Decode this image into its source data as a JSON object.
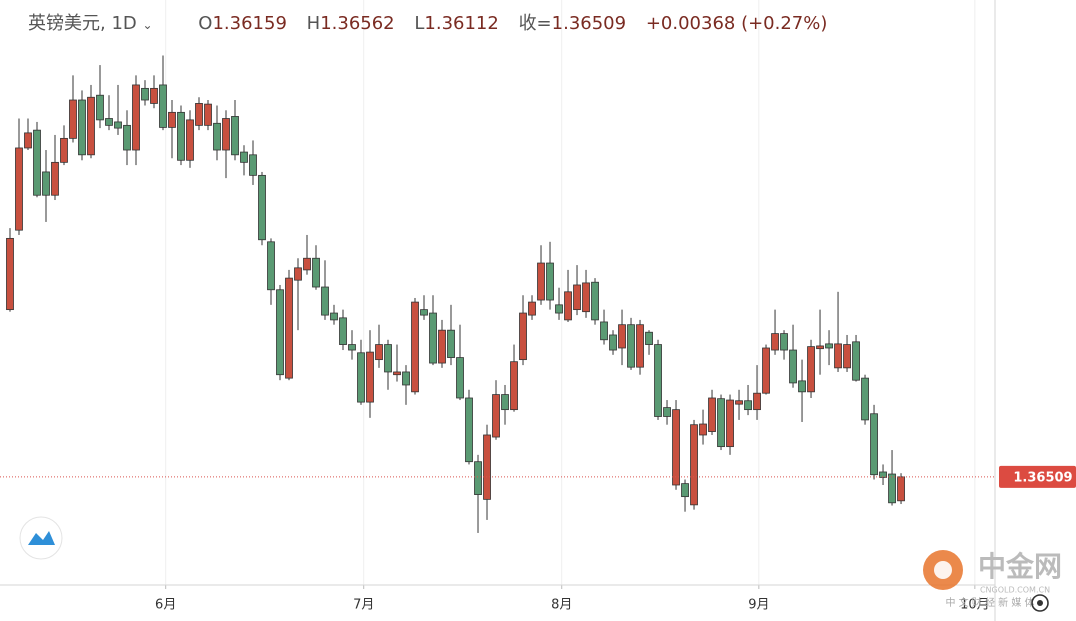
{
  "chart_data": {
    "type": "candlestick",
    "title": "英镑美元, 1D",
    "ohlc_labels": [
      "O",
      "H",
      "L",
      "收="
    ],
    "change": "+0.00368 (+0.27%)",
    "open": [
      1.3895,
      1.4011,
      1.4131,
      1.4157,
      1.4096,
      1.4062,
      1.411,
      1.4145,
      1.4201,
      1.4121,
      1.4208,
      1.4174,
      1.4169,
      1.4164,
      1.4128,
      1.4218,
      1.4196,
      1.4223,
      1.4161,
      1.4183,
      1.4113,
      1.4164,
      1.4164,
      1.4167,
      1.4128,
      1.4177,
      1.4125,
      1.4121,
      1.4091,
      1.3994,
      1.3924,
      1.3795,
      1.3938,
      1.3953,
      1.397,
      1.3928,
      1.389,
      1.3883,
      1.3844,
      1.3832,
      1.376,
      1.3822,
      1.3844,
      1.38,
      1.3804,
      1.3775,
      1.3895,
      1.389,
      1.3817,
      1.3865,
      1.3825,
      1.3766,
      1.3673,
      1.3618,
      1.3709,
      1.3771,
      1.3749,
      1.3822,
      1.3887,
      1.3909,
      1.3963,
      1.3902,
      1.388,
      1.3895,
      1.3892,
      1.3935,
      1.3877,
      1.3858,
      1.3839,
      1.3873,
      1.3811,
      1.3862,
      1.3844,
      1.3752,
      1.3639,
      1.3641,
      1.361,
      1.3712,
      1.3717,
      1.3765,
      1.3695,
      1.3757,
      1.3762,
      1.3749,
      1.3773,
      1.3836,
      1.386,
      1.3836,
      1.3791,
      1.3775,
      1.3838,
      1.3845,
      1.381,
      1.381,
      1.3848,
      1.3795,
      1.3743,
      1.3658,
      1.3655,
      1.36159
    ],
    "high": [
      1.4014,
      1.4174,
      1.4174,
      1.4169,
      1.4128,
      1.415,
      1.4164,
      1.4237,
      1.4215,
      1.4223,
      1.4252,
      1.4208,
      1.4223,
      1.4186,
      1.4237,
      1.423,
      1.4237,
      1.4266,
      1.4201,
      1.4193,
      1.4186,
      1.4205,
      1.4201,
      1.4193,
      1.4186,
      1.4201,
      1.4135,
      1.4142,
      1.4096,
      1.3999,
      1.3931,
      1.3953,
      1.397,
      1.4004,
      1.3989,
      1.3967,
      1.3902,
      1.3895,
      1.3865,
      1.3851,
      1.3865,
      1.3873,
      1.3851,
      1.3844,
      1.3814,
      1.3912,
      1.3916,
      1.3916,
      1.388,
      1.3902,
      1.3873,
      1.3778,
      1.3683,
      1.3727,
      1.3792,
      1.3785,
      1.3844,
      1.3916,
      1.3916,
      1.3989,
      1.3994,
      1.3927,
      1.3953,
      1.396,
      1.3953,
      1.3941,
      1.3895,
      1.3865,
      1.3895,
      1.3883,
      1.388,
      1.3865,
      1.3851,
      1.3763,
      1.3763,
      1.3647,
      1.3734,
      1.3749,
      1.3778,
      1.3771,
      1.3771,
      1.3778,
      1.3785,
      1.3814,
      1.3844,
      1.3895,
      1.3865,
      1.3873,
      1.3822,
      1.3851,
      1.3895,
      1.3865,
      1.3921,
      1.3858,
      1.3858,
      1.38,
      1.3756,
      1.3669,
      1.369,
      1.36562
    ],
    "low": [
      1.3892,
      1.4004,
      1.4128,
      1.4059,
      1.4023,
      1.4055,
      1.4106,
      1.4139,
      1.4113,
      1.4116,
      1.416,
      1.4157,
      1.415,
      1.4106,
      1.4106,
      1.4193,
      1.4189,
      1.4157,
      1.4116,
      1.4106,
      1.4102,
      1.4157,
      1.4157,
      1.4113,
      1.4087,
      1.4113,
      1.4091,
      1.4077,
      1.3989,
      1.3902,
      1.3792,
      1.3792,
      1.3865,
      1.3946,
      1.3924,
      1.388,
      1.3873,
      1.3836,
      1.3822,
      1.3756,
      1.3737,
      1.381,
      1.3778,
      1.379,
      1.3756,
      1.3771,
      1.388,
      1.3814,
      1.381,
      1.3814,
      1.3763,
      1.3669,
      1.3569,
      1.3588,
      1.3705,
      1.3727,
      1.3746,
      1.3814,
      1.388,
      1.3902,
      1.3895,
      1.388,
      1.3877,
      1.3887,
      1.3883,
      1.3873,
      1.3844,
      1.3829,
      1.3814,
      1.3807,
      1.38,
      1.3829,
      1.3734,
      1.3727,
      1.3632,
      1.36,
      1.3603,
      1.3698,
      1.3712,
      1.369,
      1.3683,
      1.3734,
      1.3741,
      1.3734,
      1.3771,
      1.3829,
      1.3822,
      1.3781,
      1.3731,
      1.3766,
      1.38,
      1.3814,
      1.3804,
      1.3804,
      1.379,
      1.3727,
      1.3647,
      1.3639,
      1.3609,
      1.36112
    ],
    "close": [
      1.3999,
      1.4131,
      1.4153,
      1.4062,
      1.4062,
      1.411,
      1.4145,
      1.4201,
      1.4121,
      1.4205,
      1.4172,
      1.4164,
      1.416,
      1.4128,
      1.4223,
      1.4201,
      1.4218,
      1.4161,
      1.4183,
      1.4113,
      1.4172,
      1.4196,
      1.4195,
      1.4128,
      1.4174,
      1.4121,
      1.411,
      1.4091,
      1.3997,
      1.3924,
      1.38,
      1.3941,
      1.3956,
      1.397,
      1.3928,
      1.3887,
      1.388,
      1.3844,
      1.3836,
      1.376,
      1.3833,
      1.3844,
      1.3804,
      1.3804,
      1.3785,
      1.3906,
      1.3887,
      1.3817,
      1.3865,
      1.3825,
      1.3766,
      1.3673,
      1.3625,
      1.3712,
      1.3771,
      1.3749,
      1.3819,
      1.389,
      1.3906,
      1.3963,
      1.3909,
      1.389,
      1.3921,
      1.3931,
      1.3934,
      1.388,
      1.3851,
      1.3836,
      1.3873,
      1.3811,
      1.3873,
      1.3844,
      1.3739,
      1.3739,
      1.3749,
      1.3622,
      1.3727,
      1.3728,
      1.3766,
      1.3695,
      1.3763,
      1.3762,
      1.3749,
      1.3773,
      1.3839,
      1.386,
      1.3836,
      1.3788,
      1.3775,
      1.3841,
      1.3842,
      1.3839,
      1.3845,
      1.3844,
      1.3792,
      1.3734,
      1.3654,
      1.365,
      1.3613,
      1.36509
    ],
    "up_color": "#c8503f",
    "down_color": "#5a9a73",
    "xlim": [
      -1.11,
      109.44
    ],
    "xticks": [
      {
        "value": 17.3,
        "label": "6月"
      },
      {
        "value": 39.3,
        "label": "7月"
      },
      {
        "value": 61.3,
        "label": "8月"
      },
      {
        "value": 83.2,
        "label": "9月"
      },
      {
        "value": 107.2,
        "label": "10月"
      }
    ],
    "ylim": [
      1.3493,
      1.4347
    ],
    "grid": true,
    "last_price_line": true,
    "watermark": {
      "name": "中金网",
      "domain": "CNGOLD.COM.CN",
      "tagline": "中 文 财 经 新 媒 体"
    }
  }
}
